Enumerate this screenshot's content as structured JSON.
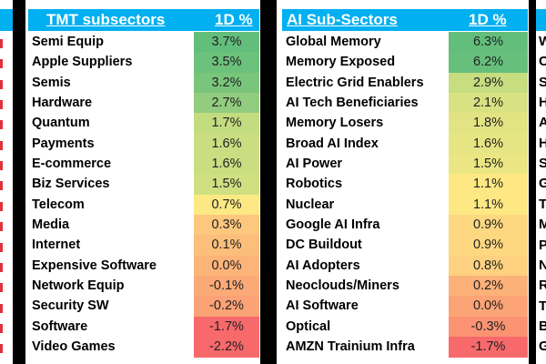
{
  "tmt": {
    "title": "TMT subsectors",
    "value_header": "1D %",
    "rows": [
      {
        "name": "Semi Equip",
        "value": "3.7%",
        "color": "#63be7b"
      },
      {
        "name": "Apple Suppliers",
        "value": "3.5%",
        "color": "#6cc17c"
      },
      {
        "name": "Semis",
        "value": "3.2%",
        "color": "#79c57c"
      },
      {
        "name": "Hardware",
        "value": "2.7%",
        "color": "#92cc7e"
      },
      {
        "name": "Quantum",
        "value": "1.7%",
        "color": "#c4dc80"
      },
      {
        "name": "Payments",
        "value": "1.6%",
        "color": "#cade81"
      },
      {
        "name": "E-commerce",
        "value": "1.6%",
        "color": "#cade81"
      },
      {
        "name": "Biz Services",
        "value": "1.5%",
        "color": "#d0e081"
      },
      {
        "name": "Telecom",
        "value": "0.7%",
        "color": "#fde984"
      },
      {
        "name": "Media",
        "value": "0.3%",
        "color": "#fdc77d"
      },
      {
        "name": "Internet",
        "value": "0.1%",
        "color": "#fcbe7b"
      },
      {
        "name": "Expensive Software",
        "value": "0.0%",
        "color": "#fcb479"
      },
      {
        "name": "Network Equip",
        "value": "-0.1%",
        "color": "#fbaa77"
      },
      {
        "name": "Security SW",
        "value": "-0.2%",
        "color": "#fba276"
      },
      {
        "name": "Software",
        "value": "-1.7%",
        "color": "#f8696b"
      },
      {
        "name": "Video Games",
        "value": "-2.2%",
        "color": "#f8696b"
      }
    ]
  },
  "ai": {
    "title": "AI Sub-Sectors",
    "value_header": "1D %",
    "rows": [
      {
        "name": "Global Memory",
        "value": "6.3%",
        "color": "#63be7b"
      },
      {
        "name": "Memory Exposed",
        "value": "6.2%",
        "color": "#66bf7b"
      },
      {
        "name": "Electric Grid Enablers",
        "value": "2.9%",
        "color": "#c6dd80"
      },
      {
        "name": "AI Tech Beneficiaries",
        "value": "2.1%",
        "color": "#d9e282"
      },
      {
        "name": "Memory Losers",
        "value": "1.8%",
        "color": "#e2e483"
      },
      {
        "name": "Broad AI Index",
        "value": "1.6%",
        "color": "#e6e583"
      },
      {
        "name": "AI Power",
        "value": "1.5%",
        "color": "#ebe683"
      },
      {
        "name": "Robotics",
        "value": "1.1%",
        "color": "#fde884"
      },
      {
        "name": "Nuclear",
        "value": "1.1%",
        "color": "#fde884"
      },
      {
        "name": "Google AI Infra",
        "value": "0.9%",
        "color": "#fdd881"
      },
      {
        "name": "DC Buildout",
        "value": "0.9%",
        "color": "#fdd881"
      },
      {
        "name": "AI Adopters",
        "value": "0.8%",
        "color": "#fdd17f"
      },
      {
        "name": "Neoclouds/Miners",
        "value": "0.2%",
        "color": "#fcb179"
      },
      {
        "name": "AI Software",
        "value": "0.0%",
        "color": "#fca476"
      },
      {
        "name": "Optical",
        "value": "-0.3%",
        "color": "#fb9373"
      },
      {
        "name": "AMZN Trainium Infra",
        "value": "-1.7%",
        "color": "#f8696b"
      }
    ]
  },
  "right_edge_letters": [
    "W",
    "C",
    "S",
    "H",
    "A",
    "H",
    "S",
    "G",
    "T",
    "M",
    "P",
    "N",
    "R",
    "T",
    "B",
    "G"
  ]
}
